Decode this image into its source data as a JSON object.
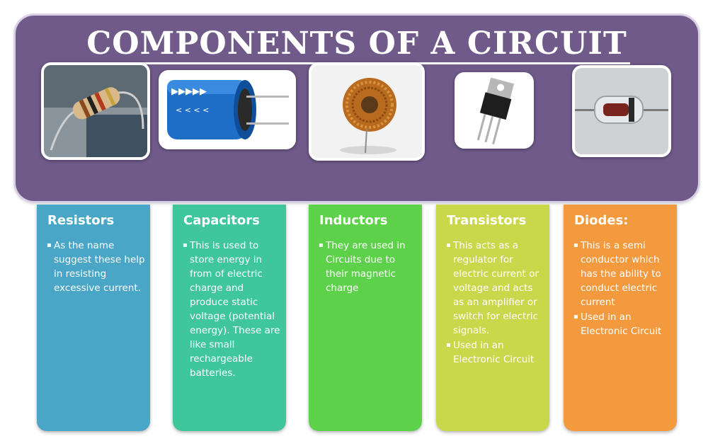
{
  "title": "COMPONENTS OF A CIRCUIT",
  "colors": {
    "banner": "#6f5a8a",
    "resistors": "#4aa6c6",
    "capacitors": "#3fc79b",
    "inductors": "#5ed14b",
    "transistors": "#c9d84b",
    "diodes": "#f39a3f"
  },
  "components": [
    {
      "name": "Resistors",
      "image": "resistor-photo",
      "bullets": [
        "As the name suggest these help in resisting excessive current."
      ]
    },
    {
      "name": "Capacitors",
      "image": "capacitor-photo",
      "bullets": [
        "This is used to store energy in from of electric charge and produce static voltage (potential energy). These are like small rechargeable batteries."
      ]
    },
    {
      "name": "Inductors",
      "image": "inductor-photo",
      "bullets": [
        "They are used in Circuits due to their magnetic charge"
      ]
    },
    {
      "name": "Transistors",
      "image": "transistor-photo",
      "bullets": [
        "This acts as a regulator for electric current or voltage  and acts as an amplifier or switch for electric signals.",
        "Used in an Electronic Circuit"
      ]
    },
    {
      "name": "Diodes:",
      "image": "diode-photo",
      "bullets": [
        "This is a semi conductor which has the ability to conduct electric current",
        "Used in an Electronic Circuit"
      ]
    }
  ]
}
